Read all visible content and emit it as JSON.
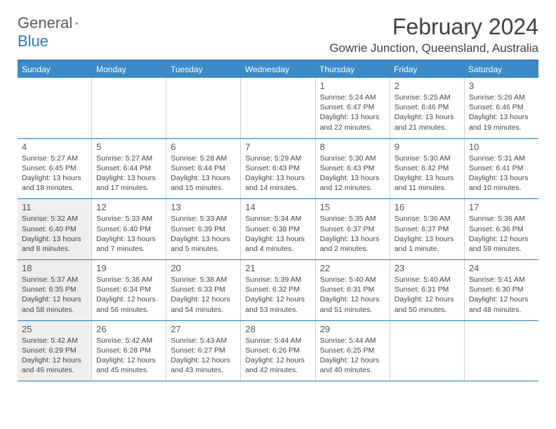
{
  "logo": {
    "text1": "General",
    "text2": "Blue"
  },
  "title": "February 2024",
  "location": "Gowrie Junction, Queensland, Australia",
  "colors": {
    "header_bg": "#3b8bc8",
    "border": "#2a7ab8",
    "shaded_bg": "#eeeeee",
    "text": "#404040"
  },
  "day_names": [
    "Sunday",
    "Monday",
    "Tuesday",
    "Wednesday",
    "Thursday",
    "Friday",
    "Saturday"
  ],
  "weeks": [
    [
      {
        "empty": true
      },
      {
        "empty": true
      },
      {
        "empty": true
      },
      {
        "empty": true
      },
      {
        "day": "1",
        "sunrise": "5:24 AM",
        "sunset": "6:47 PM",
        "daylight": "13 hours and 22 minutes."
      },
      {
        "day": "2",
        "sunrise": "5:25 AM",
        "sunset": "6:46 PM",
        "daylight": "13 hours and 21 minutes."
      },
      {
        "day": "3",
        "sunrise": "5:26 AM",
        "sunset": "6:46 PM",
        "daylight": "13 hours and 19 minutes."
      }
    ],
    [
      {
        "day": "4",
        "sunrise": "5:27 AM",
        "sunset": "6:45 PM",
        "daylight": "13 hours and 18 minutes."
      },
      {
        "day": "5",
        "sunrise": "5:27 AM",
        "sunset": "6:44 PM",
        "daylight": "13 hours and 17 minutes."
      },
      {
        "day": "6",
        "sunrise": "5:28 AM",
        "sunset": "6:44 PM",
        "daylight": "13 hours and 15 minutes."
      },
      {
        "day": "7",
        "sunrise": "5:29 AM",
        "sunset": "6:43 PM",
        "daylight": "13 hours and 14 minutes."
      },
      {
        "day": "8",
        "sunrise": "5:30 AM",
        "sunset": "6:43 PM",
        "daylight": "13 hours and 12 minutes."
      },
      {
        "day": "9",
        "sunrise": "5:30 AM",
        "sunset": "6:42 PM",
        "daylight": "13 hours and 11 minutes."
      },
      {
        "day": "10",
        "sunrise": "5:31 AM",
        "sunset": "6:41 PM",
        "daylight": "13 hours and 10 minutes."
      }
    ],
    [
      {
        "day": "11",
        "shaded": true,
        "sunrise": "5:32 AM",
        "sunset": "6:40 PM",
        "daylight": "13 hours and 8 minutes."
      },
      {
        "day": "12",
        "sunrise": "5:33 AM",
        "sunset": "6:40 PM",
        "daylight": "13 hours and 7 minutes."
      },
      {
        "day": "13",
        "sunrise": "5:33 AM",
        "sunset": "6:39 PM",
        "daylight": "13 hours and 5 minutes."
      },
      {
        "day": "14",
        "sunrise": "5:34 AM",
        "sunset": "6:38 PM",
        "daylight": "13 hours and 4 minutes."
      },
      {
        "day": "15",
        "sunrise": "5:35 AM",
        "sunset": "6:37 PM",
        "daylight": "13 hours and 2 minutes."
      },
      {
        "day": "16",
        "sunrise": "5:36 AM",
        "sunset": "6:37 PM",
        "daylight": "13 hours and 1 minute."
      },
      {
        "day": "17",
        "sunrise": "5:36 AM",
        "sunset": "6:36 PM",
        "daylight": "12 hours and 59 minutes."
      }
    ],
    [
      {
        "day": "18",
        "shaded": true,
        "sunrise": "5:37 AM",
        "sunset": "6:35 PM",
        "daylight": "12 hours and 58 minutes."
      },
      {
        "day": "19",
        "sunrise": "5:38 AM",
        "sunset": "6:34 PM",
        "daylight": "12 hours and 56 minutes."
      },
      {
        "day": "20",
        "sunrise": "5:38 AM",
        "sunset": "6:33 PM",
        "daylight": "12 hours and 54 minutes."
      },
      {
        "day": "21",
        "sunrise": "5:39 AM",
        "sunset": "6:32 PM",
        "daylight": "12 hours and 53 minutes."
      },
      {
        "day": "22",
        "sunrise": "5:40 AM",
        "sunset": "6:31 PM",
        "daylight": "12 hours and 51 minutes."
      },
      {
        "day": "23",
        "sunrise": "5:40 AM",
        "sunset": "6:31 PM",
        "daylight": "12 hours and 50 minutes."
      },
      {
        "day": "24",
        "sunrise": "5:41 AM",
        "sunset": "6:30 PM",
        "daylight": "12 hours and 48 minutes."
      }
    ],
    [
      {
        "day": "25",
        "shaded": true,
        "sunrise": "5:42 AM",
        "sunset": "6:29 PM",
        "daylight": "12 hours and 46 minutes."
      },
      {
        "day": "26",
        "sunrise": "5:42 AM",
        "sunset": "6:28 PM",
        "daylight": "12 hours and 45 minutes."
      },
      {
        "day": "27",
        "sunrise": "5:43 AM",
        "sunset": "6:27 PM",
        "daylight": "12 hours and 43 minutes."
      },
      {
        "day": "28",
        "sunrise": "5:44 AM",
        "sunset": "6:26 PM",
        "daylight": "12 hours and 42 minutes."
      },
      {
        "day": "29",
        "sunrise": "5:44 AM",
        "sunset": "6:25 PM",
        "daylight": "12 hours and 40 minutes."
      },
      {
        "empty": true
      },
      {
        "empty": true
      }
    ]
  ],
  "labels": {
    "sunrise": "Sunrise:",
    "sunset": "Sunset:",
    "daylight": "Daylight:"
  }
}
